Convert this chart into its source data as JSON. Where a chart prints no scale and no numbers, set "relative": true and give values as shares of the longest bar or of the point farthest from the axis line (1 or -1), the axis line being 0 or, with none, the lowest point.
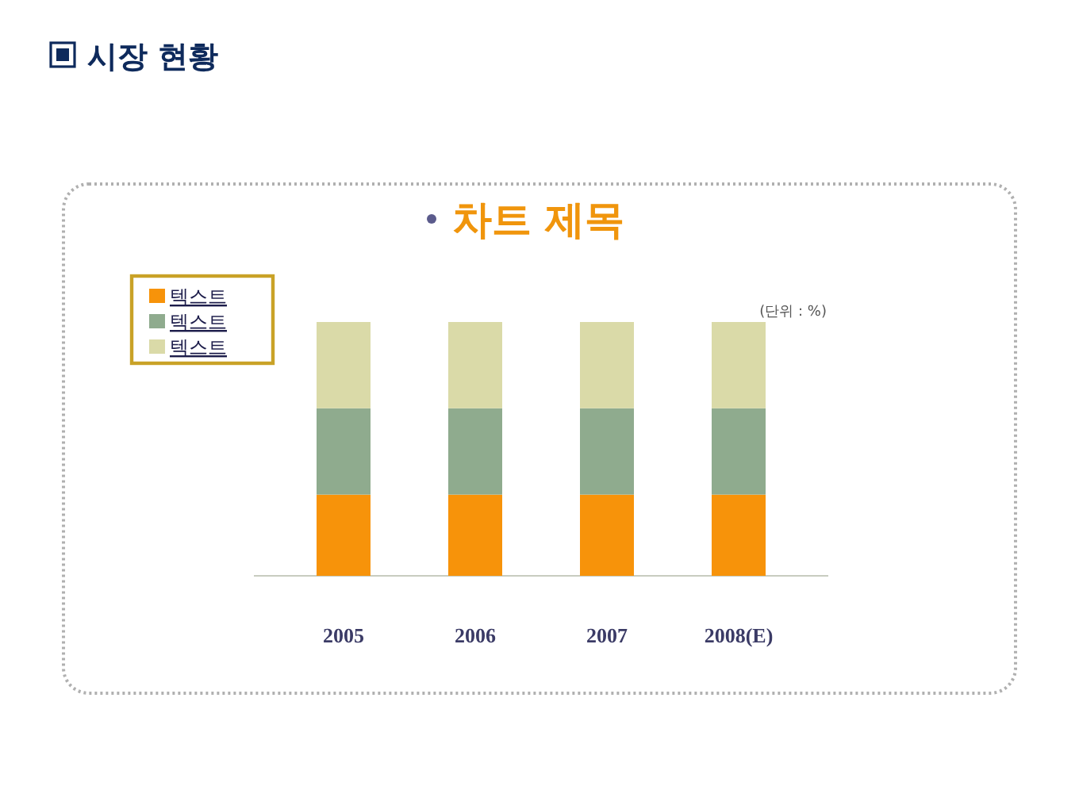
{
  "chart_data": {
    "type": "bar",
    "title": "시장 현황",
    "subtitle": "차트 제목",
    "categories": [
      "2005",
      "2006",
      "2007",
      "2008(E)"
    ],
    "stacked": true,
    "relative": true,
    "series": [
      {
        "name": "텍스트",
        "color": "#f7930a",
        "values": [
          0.32,
          0.32,
          0.32,
          0.32
        ]
      },
      {
        "name": "텍스트",
        "color": "#8fab8e",
        "values": [
          0.34,
          0.34,
          0.34,
          0.34
        ]
      },
      {
        "name": "텍스트",
        "color": "#dadaa8",
        "values": [
          0.34,
          0.34,
          0.34,
          0.34
        ]
      }
    ],
    "legend": "top left",
    "annotations": [
      "(단위 : %)"
    ]
  }
}
